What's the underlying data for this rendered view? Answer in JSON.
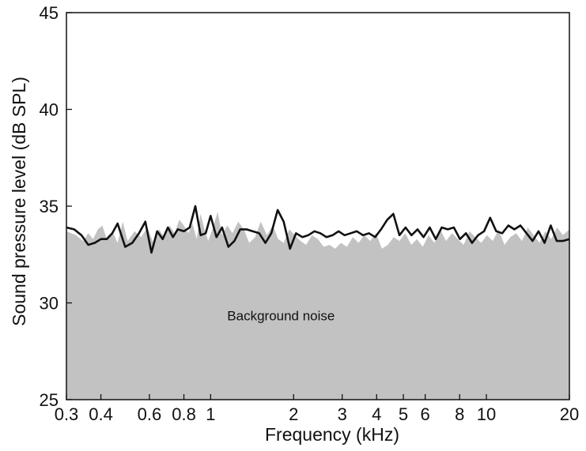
{
  "chart_data": {
    "type": "line",
    "title": "",
    "xlabel": "Frequency (kHz)",
    "ylabel": "Sound pressure level (dB SPL)",
    "xscale": "log",
    "xlim": [
      0.3,
      20
    ],
    "ylim": [
      25,
      45
    ],
    "xticks": [
      0.3,
      0.4,
      0.6,
      0.8,
      1,
      2,
      3,
      4,
      5,
      6,
      8,
      10,
      20
    ],
    "xtick_labels": [
      "0.3",
      "0.4",
      "0.6",
      "0.8",
      "1",
      "2",
      "3",
      "4",
      "5",
      "6",
      "8",
      "10",
      "20"
    ],
    "yticks": [
      25,
      30,
      35,
      40,
      45
    ],
    "ytick_labels": [
      "25",
      "30",
      "35",
      "40",
      "45"
    ],
    "grid": false,
    "colors": {
      "line": "#111111",
      "area": "#c2c2c2"
    },
    "annotations": [
      {
        "text": "Background noise",
        "x": 1.8,
        "y": 29.1
      }
    ],
    "series": [
      {
        "kind": "area",
        "x": [
          0.3,
          0.325,
          0.345,
          0.36,
          0.375,
          0.39,
          0.405,
          0.42,
          0.44,
          0.46,
          0.48,
          0.5,
          0.53,
          0.56,
          0.59,
          0.62,
          0.65,
          0.68,
          0.71,
          0.74,
          0.77,
          0.8,
          0.83,
          0.86,
          0.89,
          0.92,
          0.95,
          0.98,
          1.02,
          1.06,
          1.1,
          1.15,
          1.2,
          1.26,
          1.32,
          1.38,
          1.45,
          1.52,
          1.6,
          1.68,
          1.76,
          1.84,
          1.93,
          2.02,
          2.12,
          2.22,
          2.33,
          2.45,
          2.57,
          2.7,
          2.83,
          2.97,
          3.12,
          3.28,
          3.44,
          3.61,
          3.79,
          3.98,
          4.18,
          4.39,
          4.61,
          4.84,
          5.08,
          5.34,
          5.6,
          5.88,
          6.17,
          6.48,
          6.8,
          7.14,
          7.5,
          7.88,
          8.27,
          8.68,
          9.12,
          9.57,
          10.05,
          10.55,
          11.08,
          11.63,
          12.21,
          12.82,
          13.46,
          14.13,
          14.84,
          15.58,
          16.36,
          17.18,
          18.04,
          18.94,
          20
        ],
        "y": [
          33.7,
          33.5,
          33.2,
          33.6,
          33.3,
          33.8,
          34.0,
          33.3,
          33.7,
          33.1,
          34.2,
          33.2,
          33.7,
          33.4,
          33.9,
          33.1,
          33.8,
          33.4,
          34.0,
          33.6,
          34.3,
          34.0,
          33.6,
          34.1,
          33.3,
          34.6,
          33.8,
          33.2,
          33.9,
          34.7,
          33.5,
          34.0,
          33.6,
          34.2,
          33.8,
          33.1,
          33.4,
          34.2,
          33.5,
          34.0,
          33.3,
          33.1,
          33.8,
          33.5,
          33.2,
          33.0,
          33.5,
          33.3,
          32.9,
          33.0,
          32.8,
          33.1,
          32.9,
          33.4,
          33.1,
          33.5,
          33.2,
          33.6,
          32.8,
          33.0,
          33.4,
          33.2,
          33.6,
          33.0,
          33.3,
          32.9,
          33.5,
          33.1,
          33.8,
          33.2,
          33.6,
          33.3,
          33.0,
          33.7,
          33.4,
          33.1,
          33.5,
          33.2,
          33.8,
          33.0,
          33.4,
          33.6,
          33.2,
          33.9,
          33.5,
          33.1,
          33.7,
          33.3,
          33.9,
          33.5,
          33.8
        ]
      },
      {
        "kind": "line",
        "x": [
          0.3,
          0.32,
          0.34,
          0.36,
          0.38,
          0.4,
          0.42,
          0.44,
          0.46,
          0.49,
          0.52,
          0.55,
          0.58,
          0.61,
          0.64,
          0.67,
          0.7,
          0.73,
          0.76,
          0.8,
          0.84,
          0.88,
          0.92,
          0.96,
          1.0,
          1.05,
          1.1,
          1.16,
          1.22,
          1.28,
          1.35,
          1.42,
          1.5,
          1.58,
          1.66,
          1.75,
          1.84,
          1.94,
          2.04,
          2.15,
          2.26,
          2.38,
          2.5,
          2.63,
          2.77,
          2.91,
          3.06,
          3.22,
          3.39,
          3.57,
          3.75,
          3.95,
          4.15,
          4.37,
          4.6,
          4.84,
          5.09,
          5.35,
          5.63,
          5.92,
          6.23,
          6.55,
          6.89,
          7.25,
          7.62,
          8.02,
          8.43,
          8.87,
          9.33,
          9.81,
          10.32,
          10.86,
          11.42,
          12.01,
          12.63,
          13.29,
          13.98,
          14.7,
          15.46,
          16.26,
          17.11,
          18.0,
          18.93,
          20
        ],
        "y": [
          33.9,
          33.8,
          33.5,
          33.0,
          33.1,
          33.3,
          33.3,
          33.6,
          34.1,
          32.9,
          33.1,
          33.6,
          34.2,
          32.6,
          33.7,
          33.3,
          33.9,
          33.4,
          33.8,
          33.7,
          33.9,
          35.0,
          33.5,
          33.6,
          34.5,
          33.4,
          33.9,
          32.9,
          33.2,
          33.8,
          33.8,
          33.7,
          33.6,
          33.1,
          33.6,
          34.8,
          34.2,
          32.8,
          33.6,
          33.4,
          33.5,
          33.7,
          33.6,
          33.4,
          33.5,
          33.7,
          33.5,
          33.6,
          33.7,
          33.5,
          33.6,
          33.4,
          33.8,
          34.3,
          34.6,
          33.5,
          33.9,
          33.5,
          33.8,
          33.4,
          33.9,
          33.3,
          33.9,
          33.8,
          33.9,
          33.3,
          33.6,
          33.1,
          33.5,
          33.7,
          34.4,
          33.7,
          33.6,
          34.0,
          33.8,
          34.0,
          33.6,
          33.2,
          33.7,
          33.1,
          34.0,
          33.2,
          33.2,
          33.3
        ]
      }
    ]
  }
}
